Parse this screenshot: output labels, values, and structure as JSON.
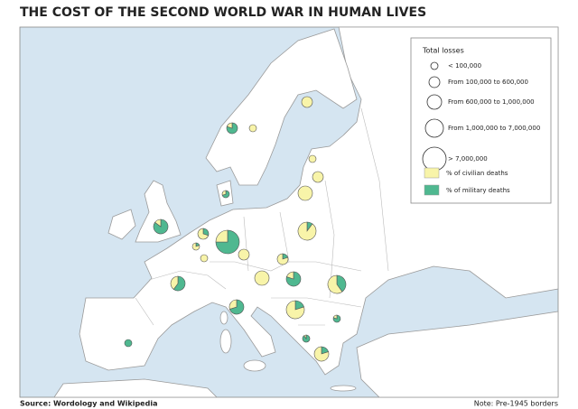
{
  "title": "THE COST OF THE SECOND WORLD WAR IN HUMAN LIVES",
  "legend": {
    "title": "Total losses",
    "size_classes": [
      "< 100,000",
      "From 100,000 to 600,000",
      "From 600,000 to 1,000,000",
      "From 1,000,000 to 7,000,000",
      "> 7,000,000"
    ],
    "civilian": "% of civilian deaths",
    "military": "% of military deaths",
    "civilian_color": "#f8f4a9",
    "military_color": "#4fb890"
  },
  "pies": [
    {
      "size_class": 1,
      "civilian": 20,
      "military": 80
    },
    {
      "size_class": 0,
      "civilian": 100,
      "military": 0
    },
    {
      "size_class": 1,
      "civilian": 100,
      "military": 0
    },
    {
      "size_class": 0,
      "civilian": 30,
      "military": 70
    },
    {
      "size_class": 0,
      "civilian": 100,
      "military": 0
    },
    {
      "size_class": 1,
      "civilian": 100,
      "military": 0
    },
    {
      "size_class": 2,
      "civilian": 100,
      "military": 0
    },
    {
      "size_class": 2,
      "civilian": 15,
      "military": 85
    },
    {
      "size_class": 1,
      "civilian": 70,
      "military": 30
    },
    {
      "size_class": 0,
      "civilian": 80,
      "military": 20
    },
    {
      "size_class": 4,
      "civilian": 25,
      "military": 75
    },
    {
      "size_class": 3,
      "civilian": 90,
      "military": 10
    },
    {
      "size_class": 2,
      "civilian": 40,
      "military": 60
    },
    {
      "size_class": 0,
      "civilian": 100,
      "military": 0
    },
    {
      "size_class": 2,
      "civilian": 100,
      "military": 0
    },
    {
      "size_class": 1,
      "civilian": 100,
      "military": 0
    },
    {
      "size_class": 1,
      "civilian": 80,
      "military": 20
    },
    {
      "size_class": 2,
      "civilian": 20,
      "military": 80
    },
    {
      "size_class": 3,
      "civilian": 60,
      "military": 40
    },
    {
      "size_class": 2,
      "civilian": 30,
      "military": 70
    },
    {
      "size_class": 3,
      "civilian": 80,
      "military": 20
    },
    {
      "size_class": 0,
      "civilian": 20,
      "military": 80
    },
    {
      "size_class": 0,
      "civilian": 10,
      "military": 90
    },
    {
      "size_class": 2,
      "civilian": 80,
      "military": 20
    },
    {
      "size_class": 0,
      "civilian": 0,
      "military": 100
    }
  ],
  "source": "Source: Wordology and Wikipedia",
  "note": "Note: Pre-1945 borders"
}
